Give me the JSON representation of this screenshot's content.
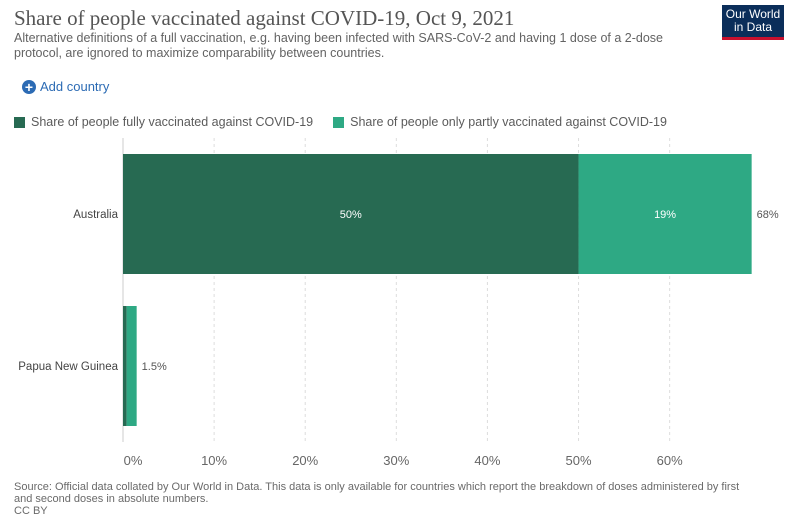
{
  "header": {
    "title": "Share of people vaccinated against COVID-19, Oct 9, 2021",
    "subtitle": "Alternative definitions of a full vaccination, e.g. having been infected with SARS-CoV-2 and having 1 dose of a 2-dose protocol, are ignored to maximize comparability between countries.",
    "logo_line1": "Our World",
    "logo_line2": "in Data"
  },
  "controls": {
    "add_country_label": "Add country",
    "add_icon": "plus-circle-icon"
  },
  "footer": {
    "source": "Source: Official data collated by Our World in Data. This data is only available for countries which report the breakdown of doses administered by first and second doses in absolute numbers.",
    "license": "CC BY"
  },
  "colors": {
    "fully": "#276a52",
    "partly": "#2ea984",
    "grid": "#dddddd",
    "axis_text": "#666666"
  },
  "chart_data": {
    "type": "bar",
    "orientation": "horizontal",
    "stacked": true,
    "categories": [
      "Australia",
      "Papua New Guinea"
    ],
    "series": [
      {
        "name": "Share of people fully vaccinated against COVID-19",
        "values": [
          50,
          0.4
        ],
        "labels": [
          "50%",
          ""
        ]
      },
      {
        "name": "Share of people only partly vaccinated against COVID-19",
        "values": [
          19,
          1.1
        ],
        "labels": [
          "19%",
          ""
        ]
      }
    ],
    "totals": [
      "68%",
      "1.5%"
    ],
    "xticks": [
      "0%",
      "10%",
      "20%",
      "30%",
      "40%",
      "50%",
      "60%"
    ],
    "xtick_values": [
      0,
      10,
      20,
      30,
      40,
      50,
      60
    ],
    "xlim": [
      0,
      68.6
    ],
    "grid": true,
    "legend_position": "top-left"
  }
}
